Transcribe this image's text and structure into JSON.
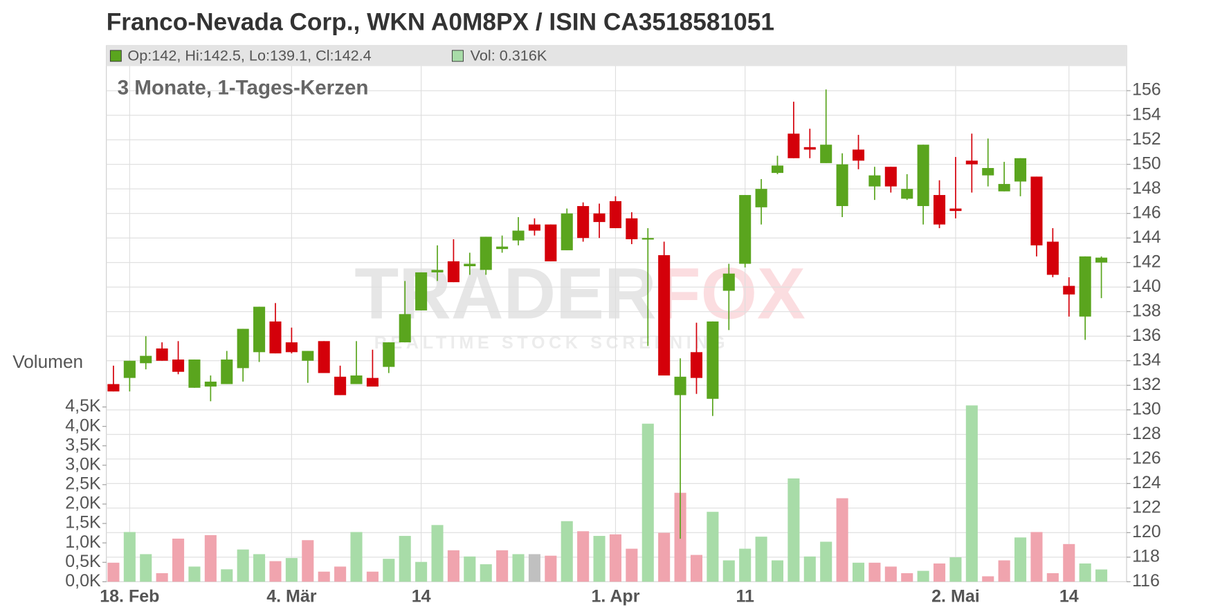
{
  "chart_data": {
    "type": "candlestick",
    "title": "Franco-Nevada Corp., WKN A0M8PX / ISIN CA3518581051",
    "subtitle": "3 Monate, 1-Tages-Kerzen",
    "legend": [
      "Op:142, Hi:142.5, Lo:139.1, Cl:142.4",
      "Vol: 0.316K"
    ],
    "volume_label": "Volumen",
    "watermark": {
      "brand": [
        "TRADER",
        "FOX"
      ],
      "tagline": "REALTIME STOCK SCREENING"
    },
    "categories": [
      null,
      "18. Feb",
      null,
      null,
      null,
      null,
      null,
      null,
      null,
      null,
      null,
      "4. Mär",
      null,
      null,
      null,
      null,
      null,
      null,
      null,
      "14",
      null,
      null,
      null,
      null,
      null,
      null,
      null,
      null,
      null,
      null,
      null,
      "1. Apr",
      null,
      null,
      null,
      null,
      null,
      null,
      null,
      "11",
      null,
      null,
      null,
      null,
      null,
      null,
      null,
      null,
      null,
      null,
      null,
      null,
      "2. Mai",
      null,
      null,
      null,
      null,
      null,
      null,
      "14",
      null,
      null
    ],
    "series": {
      "up_color": "#5aa51e",
      "down_color": "#d4000a",
      "open": [
        132.1,
        132.6,
        133.8,
        135.0,
        134.1,
        131.8,
        131.9,
        132.1,
        133.4,
        134.7,
        137.2,
        135.5,
        134.0,
        135.6,
        132.7,
        132.1,
        132.6,
        133.5,
        135.5,
        138.1,
        141.2,
        142.1,
        141.7,
        141.4,
        143.1,
        143.8,
        145.1,
        145.1,
        143.0,
        146.6,
        146.0,
        147.0,
        145.6,
        143.9,
        142.6,
        131.2,
        134.7,
        130.9,
        139.7,
        141.9,
        146.5,
        149.3,
        152.5,
        151.4,
        150.1,
        146.6,
        151.2,
        148.2,
        149.8,
        147.2,
        146.6,
        147.5,
        146.4,
        150.3,
        149.1,
        147.8,
        148.6,
        149.0,
        143.7,
        140.1,
        137.6,
        142
      ],
      "high": [
        133.6,
        134.0,
        136.0,
        135.5,
        135.6,
        134.1,
        132.8,
        134.8,
        136.6,
        138.4,
        138.7,
        136.7,
        134.8,
        135.6,
        133.6,
        135.6,
        134.9,
        135.5,
        140.5,
        141.2,
        143.4,
        143.9,
        142.8,
        144.1,
        144.2,
        145.7,
        145.6,
        145.1,
        146.4,
        146.9,
        146.8,
        147.4,
        146.1,
        144.8,
        143.7,
        134.2,
        137.1,
        137.2,
        141.9,
        147.5,
        148.8,
        150.7,
        155.1,
        152.9,
        156.1,
        150.9,
        152.4,
        149.8,
        149.8,
        149.2,
        151.6,
        148.7,
        150.6,
        152.5,
        152.1,
        150.2,
        150.5,
        149.0,
        144.8,
        140.8,
        142.5,
        142.5
      ],
      "low": [
        131.5,
        131.5,
        133.3,
        134.0,
        132.9,
        131.8,
        130.7,
        132.1,
        132.3,
        133.9,
        134.6,
        134.6,
        132.2,
        133.0,
        131.2,
        132.1,
        131.9,
        133.0,
        135.5,
        138.1,
        140.5,
        140.4,
        141.0,
        141.0,
        142.8,
        143.4,
        144.2,
        142.1,
        143.0,
        143.7,
        144.0,
        144.8,
        143.5,
        135.2,
        132.8,
        119.5,
        131.3,
        129.5,
        136.5,
        141.6,
        145.1,
        149.2,
        150.5,
        150.5,
        150.1,
        145.7,
        149.6,
        147.1,
        147.7,
        147.1,
        145.1,
        144.8,
        145.6,
        147.7,
        148.2,
        147.8,
        147.4,
        142.5,
        140.8,
        137.6,
        135.7,
        139.1
      ],
      "close": [
        131.5,
        134.0,
        134.4,
        134.0,
        133.1,
        134.1,
        132.3,
        134.1,
        136.6,
        138.4,
        134.6,
        134.7,
        134.8,
        133.0,
        131.2,
        132.8,
        131.9,
        135.5,
        137.8,
        141.2,
        141.4,
        140.4,
        141.9,
        144.1,
        143.3,
        144.6,
        144.6,
        142.1,
        146.0,
        144.0,
        145.3,
        144.8,
        143.9,
        144.0,
        132.8,
        132.7,
        132.6,
        137.2,
        141.1,
        147.5,
        148.0,
        149.9,
        150.5,
        151.2,
        151.6,
        150.0,
        150.3,
        149.1,
        148.2,
        148.0,
        151.6,
        145.1,
        146.2,
        150.0,
        149.7,
        148.4,
        150.5,
        143.4,
        141.0,
        139.4,
        142.5,
        142.4
      ]
    },
    "volume": {
      "values": [
        490,
        1280,
        710,
        220,
        1110,
        390,
        1200,
        320,
        830,
        710,
        530,
        610,
        1070,
        260,
        390,
        1280,
        260,
        590,
        1180,
        510,
        1460,
        810,
        650,
        450,
        810,
        710,
        710,
        670,
        1560,
        1300,
        1180,
        1220,
        850,
        4070,
        1260,
        2290,
        690,
        1800,
        550,
        850,
        1160,
        550,
        2660,
        650,
        1030,
        2150,
        490,
        490,
        390,
        220,
        280,
        470,
        630,
        4540,
        140,
        550,
        1140,
        1280,
        220,
        970,
        470,
        316
      ],
      "colors": [
        "#f0a4ae",
        "#a8dca8",
        "#a8dca8",
        "#f0a4ae",
        "#f0a4ae",
        "#a8dca8",
        "#f0a4ae",
        "#a8dca8",
        "#a8dca8",
        "#a8dca8",
        "#f0a4ae",
        "#a8dca8",
        "#f0a4ae",
        "#f0a4ae",
        "#f0a4ae",
        "#a8dca8",
        "#f0a4ae",
        "#a8dca8",
        "#a8dca8",
        "#a8dca8",
        "#a8dca8",
        "#f0a4ae",
        "#a8dca8",
        "#a8dca8",
        "#f0a4ae",
        "#a8dca8",
        "#c0c0c0",
        "#f0a4ae",
        "#a8dca8",
        "#f0a4ae",
        "#a8dca8",
        "#f0a4ae",
        "#f0a4ae",
        "#a8dca8",
        "#f0a4ae",
        "#f0a4ae",
        "#f0a4ae",
        "#a8dca8",
        "#a8dca8",
        "#a8dca8",
        "#a8dca8",
        "#a8dca8",
        "#a8dca8",
        "#a8dca8",
        "#a8dca8",
        "#f0a4ae",
        "#a8dca8",
        "#f0a4ae",
        "#f0a4ae",
        "#f0a4ae",
        "#a8dca8",
        "#f0a4ae",
        "#a8dca8",
        "#a8dca8",
        "#f0a4ae",
        "#f0a4ae",
        "#a8dca8",
        "#f0a4ae",
        "#f0a4ae",
        "#f0a4ae",
        "#a8dca8",
        "#a8dca8"
      ],
      "ylim": [
        0,
        4500
      ],
      "yticks": [
        {
          "value": 0,
          "label": "0,0K"
        },
        {
          "value": 500,
          "label": "0,5K"
        },
        {
          "value": 1000,
          "label": "1,0K"
        },
        {
          "value": 1500,
          "label": "1,5K"
        },
        {
          "value": 2000,
          "label": "2,0K"
        },
        {
          "value": 2500,
          "label": "2,5K"
        },
        {
          "value": 3000,
          "label": "3,0K"
        },
        {
          "value": 3500,
          "label": "3,5K"
        },
        {
          "value": 4000,
          "label": "4,0K"
        },
        {
          "value": 4500,
          "label": "4,5K"
        }
      ]
    },
    "ylim": [
      116,
      158
    ],
    "yticks": [
      116,
      118,
      120,
      122,
      124,
      126,
      128,
      130,
      132,
      134,
      136,
      138,
      140,
      142,
      144,
      146,
      148,
      150,
      152,
      154,
      156
    ],
    "grid": true
  }
}
